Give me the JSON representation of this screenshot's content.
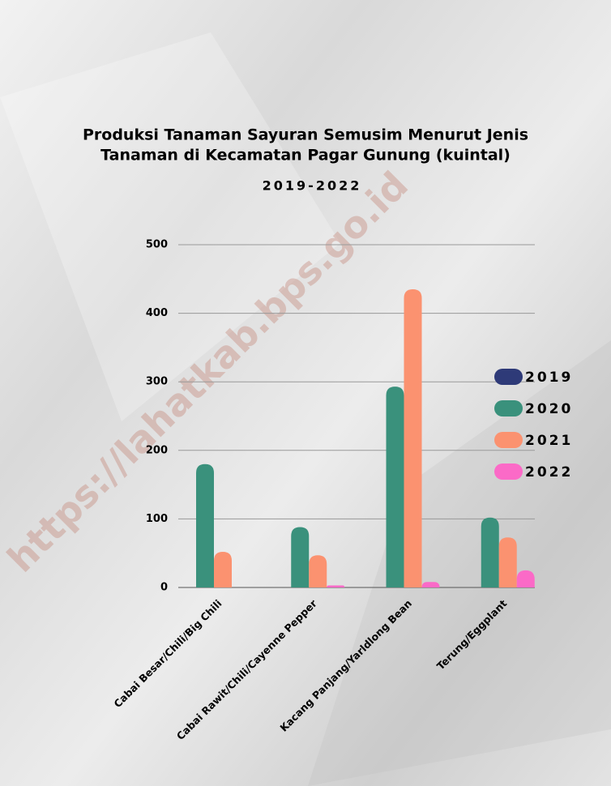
{
  "chart_data": {
    "type": "bar",
    "title": "Produksi Tanaman Sayuran Semusim Menurut Jenis",
    "title_line2": "Tanaman di Kecamatan Pagar Gunung (kuintal)",
    "subtitle": "2019-2022",
    "watermark": "https://lahatkab.bps.go.id",
    "categories": [
      "Cabai Besar/Chili/Big Chili",
      "Cabai Rawit/Chili/Cayenne Pepper",
      "Kacang Panjang/Yarldlong Bean",
      "Terung/Eggplant"
    ],
    "series": [
      {
        "name": "2019",
        "color": "#2e3a78",
        "values": [
          0,
          0,
          0,
          0
        ]
      },
      {
        "name": "2020",
        "color": "#3a917c",
        "values": [
          180,
          88,
          293,
          102
        ]
      },
      {
        "name": "2021",
        "color": "#fb9270",
        "values": [
          52,
          47,
          435,
          73
        ]
      },
      {
        "name": "2022",
        "color": "#fb6ac7",
        "values": [
          0,
          3,
          8,
          25
        ]
      }
    ],
    "ylim": [
      0,
      500
    ],
    "yticks": [
      0,
      100,
      200,
      300,
      400,
      500
    ],
    "grid": true,
    "legend": "right"
  }
}
